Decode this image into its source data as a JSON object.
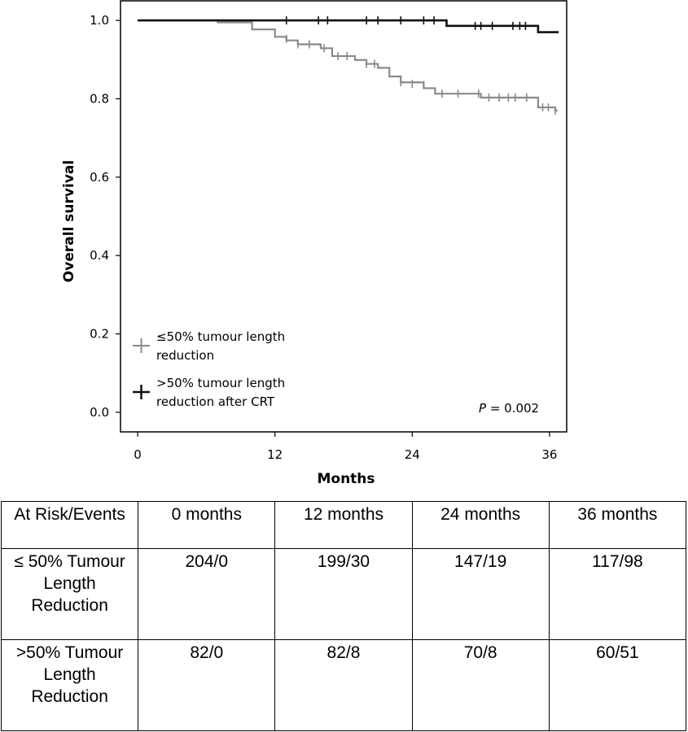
{
  "chart_data": {
    "type": "line",
    "subtype": "kaplan-meier",
    "xlabel": "Months",
    "ylabel": "Overall survival",
    "xlim": [
      -1.5,
      37.5
    ],
    "ylim": [
      -0.05,
      1.05
    ],
    "xticks": [
      0,
      12,
      24,
      36
    ],
    "yticks": [
      0.0,
      0.2,
      0.4,
      0.6,
      0.8,
      1.0
    ],
    "ytick_labels": [
      "0.0",
      "0.2",
      "0.4",
      "0.6",
      "0.8",
      "1.0"
    ],
    "legend_placement": "lower-left",
    "annotation": {
      "p_label": "P",
      "p_value": " = 0.002"
    },
    "series": [
      {
        "name_lines": [
          "≤50% tumour length",
          "reduction"
        ],
        "color": "#8a8a8a",
        "steps": [
          [
            0,
            1.0
          ],
          [
            7,
            0.995
          ],
          [
            10,
            0.977
          ],
          [
            12,
            0.958
          ],
          [
            13,
            0.949
          ],
          [
            14,
            0.939
          ],
          [
            16,
            0.929
          ],
          [
            17,
            0.909
          ],
          [
            19,
            0.899
          ],
          [
            20,
            0.889
          ],
          [
            21,
            0.879
          ],
          [
            22,
            0.857
          ],
          [
            23,
            0.842
          ],
          [
            25,
            0.827
          ],
          [
            26,
            0.813
          ],
          [
            30,
            0.803
          ],
          [
            35,
            0.778
          ],
          [
            36.5,
            0.77
          ]
        ],
        "end_x": 36.7,
        "censor_marks": [
          [
            13,
            0.953
          ],
          [
            14,
            0.939
          ],
          [
            15,
            0.939
          ],
          [
            16.3,
            0.929
          ],
          [
            17.5,
            0.909
          ],
          [
            18.3,
            0.909
          ],
          [
            20,
            0.889
          ],
          [
            20.7,
            0.889
          ],
          [
            23,
            0.842
          ],
          [
            24,
            0.838
          ],
          [
            25,
            0.835
          ],
          [
            26.6,
            0.813
          ],
          [
            28,
            0.813
          ],
          [
            29.8,
            0.813
          ],
          [
            30.7,
            0.803
          ],
          [
            31.6,
            0.803
          ],
          [
            32.4,
            0.803
          ],
          [
            33,
            0.803
          ],
          [
            34,
            0.803
          ],
          [
            35.4,
            0.778
          ],
          [
            35.9,
            0.778
          ],
          [
            36.5,
            0.77
          ]
        ]
      },
      {
        "name_lines": [
          ">50% tumour length",
          "reduction after CRT"
        ],
        "color": "#111111",
        "steps": [
          [
            0,
            1.0
          ],
          [
            27,
            0.986
          ],
          [
            35,
            0.97
          ]
        ],
        "end_x": 36.8,
        "censor_marks": [
          [
            13,
            1.0
          ],
          [
            15.8,
            1.0
          ],
          [
            16.6,
            1.0
          ],
          [
            20,
            1.0
          ],
          [
            21,
            1.0
          ],
          [
            23,
            1.0
          ],
          [
            25,
            1.0
          ],
          [
            25.9,
            1.0
          ],
          [
            29.5,
            0.986
          ],
          [
            30,
            0.986
          ],
          [
            31,
            0.986
          ],
          [
            32.8,
            0.986
          ],
          [
            33.4,
            0.986
          ],
          [
            33.9,
            0.986
          ]
        ]
      }
    ]
  },
  "risk_table": {
    "header": [
      "At Risk/Events",
      "0 months",
      "12 months",
      "24 months",
      "36 months"
    ],
    "rows": [
      {
        "label": "≤ 50% Tumour Length Reduction",
        "values": [
          "204/0",
          "199/30",
          "147/19",
          "117/98"
        ]
      },
      {
        "label": ">50% Tumour Length Reduction",
        "values": [
          "82/0",
          "82/8",
          "70/8",
          "60/51"
        ]
      }
    ]
  }
}
